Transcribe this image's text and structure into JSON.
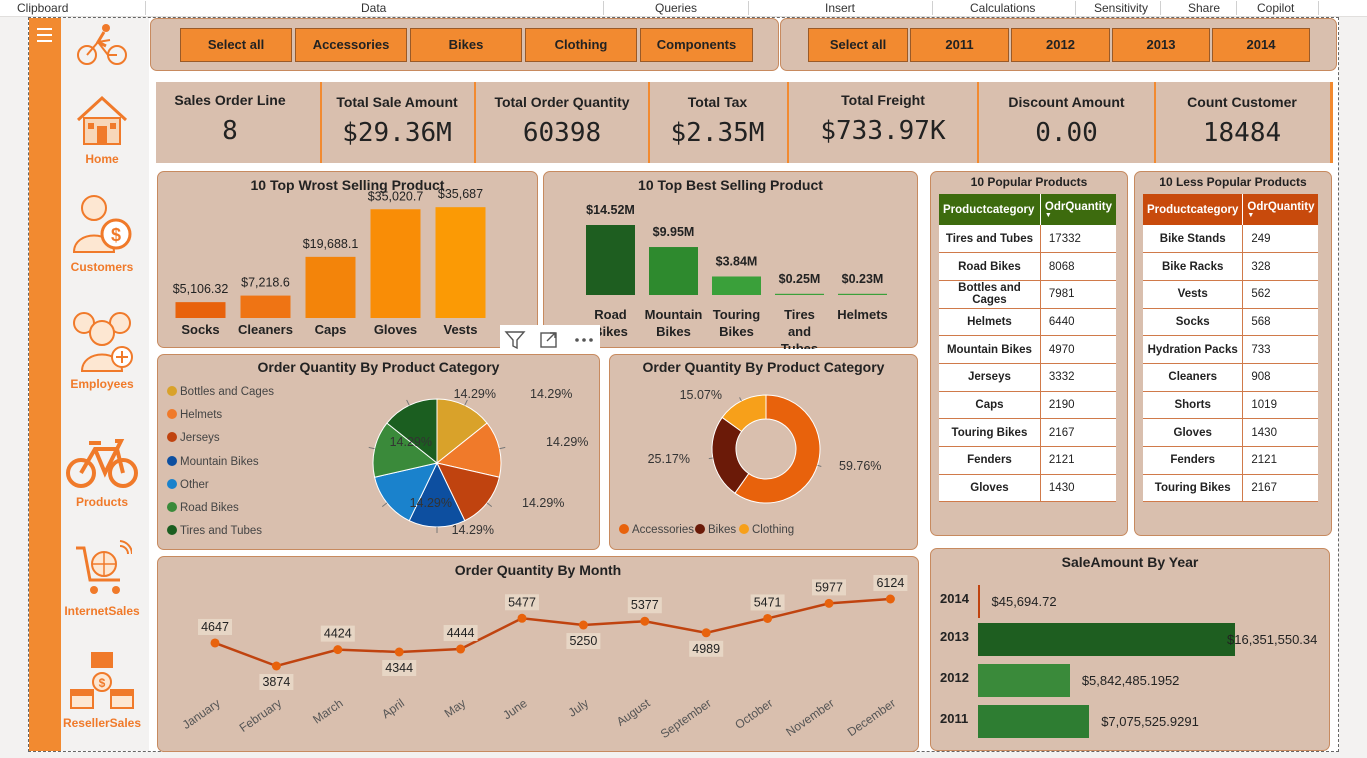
{
  "ribbon": [
    "Clipboard",
    "Data",
    "Queries",
    "Insert",
    "Calculations",
    "Sensitivity",
    "Share",
    "Copilot"
  ],
  "nav": [
    {
      "label": "",
      "icon": "cyclist-logo-icon"
    },
    {
      "label": "Home",
      "icon": "home-icon"
    },
    {
      "label": "Customers",
      "icon": "customer-icon"
    },
    {
      "label": "Employees",
      "icon": "employees-icon"
    },
    {
      "label": "Products",
      "icon": "bicycle-icon"
    },
    {
      "label": "InternetSales",
      "icon": "internet-sales-icon"
    },
    {
      "label": "ResellerSales",
      "icon": "reseller-store-icon"
    }
  ],
  "category_slicer": [
    "Select all",
    "Accessories",
    "Bikes",
    "Clothing",
    "Components"
  ],
  "year_slicer": [
    "Select all",
    "2011",
    "2012",
    "2013",
    "2014"
  ],
  "kpis": [
    {
      "title": "Sales Order Line",
      "value": "8"
    },
    {
      "title": "Total Sale Amount",
      "value": "$29.36M"
    },
    {
      "title": "Total Order Quantity",
      "value": "60398"
    },
    {
      "title": "Total Tax",
      "value": "$2.35M"
    },
    {
      "title": "Total Freight",
      "value": "$733.97K"
    },
    {
      "title": "Discount Amount",
      "value": "0.00"
    },
    {
      "title": "Count Customer",
      "value": "18484"
    }
  ],
  "visual_toolbar": [
    "filter-icon",
    "focus-mode-icon",
    "more-options-icon"
  ],
  "chart_data": [
    {
      "type": "bar",
      "title": "10 Top Wrost Selling Product",
      "categories": [
        "Socks",
        "Cleaners",
        "Caps",
        "Gloves",
        "Vests"
      ],
      "values": [
        5106.32,
        7218.6,
        19688.1,
        35020.7,
        35687
      ],
      "labels": [
        "$5,106.32",
        "$7,218.6",
        "$19,688.1",
        "$35,020.7",
        "$35,687"
      ],
      "colors": [
        "#e8620c",
        "#ef7414",
        "#f3840a",
        "#f98d06",
        "#fb9a05"
      ]
    },
    {
      "type": "bar",
      "title": "10 Top Best Selling Product",
      "categories": [
        "Road Bikes",
        "Mountain Bikes",
        "Touring Bikes",
        "Tires and Tubes",
        "Helmets"
      ],
      "values": [
        14.52,
        9.95,
        3.84,
        0.25,
        0.23
      ],
      "labels": [
        "$14.52M",
        "$9.95M",
        "$3.84M",
        "$0.25M",
        "$0.23M"
      ],
      "colors": [
        "#1e5e20",
        "#2e8a2e",
        "#3aa03a",
        "#3aa03a",
        "#3aa03a"
      ]
    },
    {
      "type": "pie",
      "title": "Order Quantity By Product Category",
      "categories": [
        "Bottles and Cages",
        "Helmets",
        "Jerseys",
        "Mountain Bikes",
        "Other",
        "Road Bikes",
        "Tires and Tubes"
      ],
      "values": [
        14.29,
        14.29,
        14.29,
        14.29,
        14.29,
        14.29,
        14.29
      ],
      "labels": [
        "14.29%",
        "14.29%",
        "14.29%",
        "14.29%",
        "14.29%",
        "14.29%",
        "14.29%"
      ],
      "colors": [
        "#d9a22a",
        "#f07a2a",
        "#c0430f",
        "#0d4fa0",
        "#1a82cc",
        "#3a8a3a",
        "#1b5e20"
      ]
    },
    {
      "type": "pie",
      "title": "Order Quantity By Product Category",
      "categories": [
        "Accessories",
        "Bikes",
        "Clothing"
      ],
      "values": [
        59.76,
        25.17,
        15.07
      ],
      "labels": [
        "59.76%",
        "25.17%",
        "15.07%"
      ],
      "colors": [
        "#e8620c",
        "#6b1a08",
        "#f7a01a"
      ]
    },
    {
      "type": "line",
      "title": "Order Quantity By Month",
      "categories": [
        "January",
        "February",
        "March",
        "April",
        "May",
        "June",
        "July",
        "August",
        "September",
        "October",
        "November",
        "December"
      ],
      "values": [
        4647,
        3874,
        4424,
        4344,
        4444,
        5477,
        5250,
        5377,
        4989,
        5471,
        5977,
        6124
      ],
      "color": "#c0430f"
    },
    {
      "type": "bar",
      "title": "SaleAmount By Year",
      "categories": [
        "2014",
        "2013",
        "2012",
        "2011"
      ],
      "values": [
        45694.72,
        16351550.34,
        5842485.1952,
        7075525.9291
      ],
      "labels": [
        "$45,694.72",
        "$16,351,550.34",
        "$5,842,485.1952",
        "$7,075,525.9291"
      ],
      "colors": [
        "#c0430f",
        "#1e5e20",
        "#3a8a3a",
        "#2e7d32"
      ]
    }
  ],
  "popular": {
    "title": "10 Popular Products",
    "headers": [
      "Productcategory",
      "OdrQuantity"
    ],
    "rows": [
      [
        "Tires and Tubes",
        "17332"
      ],
      [
        "Road Bikes",
        "8068"
      ],
      [
        "Bottles and Cages",
        "7981"
      ],
      [
        "Helmets",
        "6440"
      ],
      [
        "Mountain Bikes",
        "4970"
      ],
      [
        "Jerseys",
        "3332"
      ],
      [
        "Caps",
        "2190"
      ],
      [
        "Touring Bikes",
        "2167"
      ],
      [
        "Fenders",
        "2121"
      ],
      [
        "Gloves",
        "1430"
      ]
    ]
  },
  "less_popular": {
    "title": "10 Less Popular Products",
    "headers": [
      "Productcategory",
      "OdrQuantity"
    ],
    "rows": [
      [
        "Bike Stands",
        "249"
      ],
      [
        "Bike Racks",
        "328"
      ],
      [
        "Vests",
        "562"
      ],
      [
        "Socks",
        "568"
      ],
      [
        "Hydration Packs",
        "733"
      ],
      [
        "Cleaners",
        "908"
      ],
      [
        "Shorts",
        "1019"
      ],
      [
        "Gloves",
        "1430"
      ],
      [
        "Fenders",
        "2121"
      ],
      [
        "Touring Bikes",
        "2167"
      ]
    ]
  },
  "colors": {
    "accent": "#f28a30",
    "panel": "#d9bfae",
    "popular_header": "#3d6b0e",
    "less_header": "#c84a0c"
  }
}
